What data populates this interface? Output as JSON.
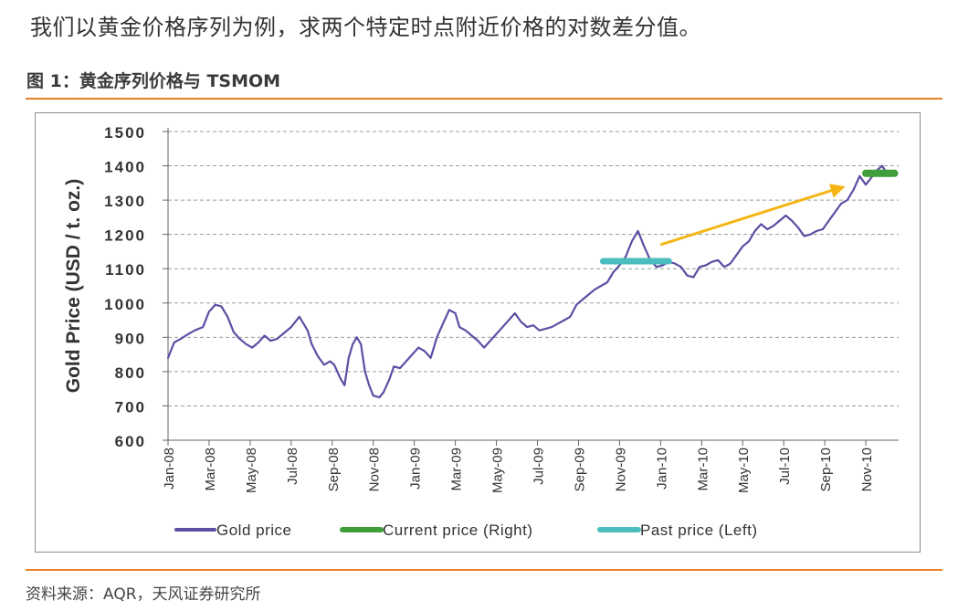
{
  "page": {
    "intro_text": "我们以黄金价格序列为例，求两个特定时点附近价格的对数差分值。",
    "figure_title": "图 1：黄金序列价格与 TSMOM",
    "source": "资料来源：AQR，天风证券研究所"
  },
  "colors": {
    "gold_price": "#5b4fa3",
    "current_price": "#3f9e3a",
    "past_price": "#4bbdbe",
    "arrow": "#f5b515",
    "accent_rule": "#e87f24",
    "grid": "#9a9a9a"
  },
  "chart_data": {
    "type": "line",
    "title": "",
    "ylabel": "Gold Price (USD / t. oz.)",
    "xlabel": "",
    "ylim": [
      600,
      1500
    ],
    "yticks": [
      600,
      700,
      800,
      900,
      1000,
      1100,
      1200,
      1300,
      1400,
      1500
    ],
    "ytick_labels": [
      "600",
      "700",
      "800",
      "900",
      "1000",
      "1100",
      "1200",
      "1300",
      "1400",
      "1500"
    ],
    "grid": true,
    "legend_position": "bottom",
    "x_start": "2008-01",
    "x_end": "2010-12",
    "x_ticks": [
      {
        "label": "Jan-08",
        "month": 0
      },
      {
        "label": "Mar-08",
        "month": 2
      },
      {
        "label": "May-08",
        "month": 4
      },
      {
        "label": "Jul-08",
        "month": 6
      },
      {
        "label": "Sep-08",
        "month": 8
      },
      {
        "label": "Nov-08",
        "month": 10
      },
      {
        "label": "Jan-09",
        "month": 12
      },
      {
        "label": "Mar-09",
        "month": 14
      },
      {
        "label": "May-09",
        "month": 16
      },
      {
        "label": "Jul-09",
        "month": 18
      },
      {
        "label": "Sep-09",
        "month": 20
      },
      {
        "label": "Nov-09",
        "month": 22
      },
      {
        "label": "Jan-10",
        "month": 24
      },
      {
        "label": "Mar-10",
        "month": 26
      },
      {
        "label": "May-10",
        "month": 28
      },
      {
        "label": "Jul-10",
        "month": 30
      },
      {
        "label": "Sep-10",
        "month": 32
      },
      {
        "label": "Nov-10",
        "month": 34
      }
    ],
    "series": [
      {
        "name": "Gold price",
        "month": [
          0,
          0.3,
          0.6,
          1.0,
          1.3,
          1.7,
          2.0,
          2.3,
          2.6,
          2.9,
          3.2,
          3.5,
          3.8,
          4.1,
          4.4,
          4.7,
          5.0,
          5.3,
          5.6,
          6.0,
          6.4,
          6.8,
          7.0,
          7.3,
          7.6,
          7.9,
          8.1,
          8.4,
          8.6,
          8.8,
          9.0,
          9.2,
          9.4,
          9.6,
          9.8,
          10.0,
          10.3,
          10.5,
          10.8,
          11.0,
          11.3,
          11.6,
          11.9,
          12.2,
          12.5,
          12.8,
          13.1,
          13.4,
          13.7,
          14.0,
          14.2,
          14.5,
          14.8,
          15.1,
          15.4,
          15.7,
          16.0,
          16.3,
          16.6,
          16.9,
          17.2,
          17.5,
          17.8,
          18.1,
          18.4,
          18.7,
          19.0,
          19.3,
          19.6,
          19.9,
          20.2,
          20.5,
          20.8,
          21.1,
          21.4,
          21.7,
          22.0,
          22.3,
          22.6,
          22.9,
          23.2,
          23.5,
          23.8,
          24.1,
          24.4,
          24.7,
          25.0,
          25.3,
          25.6,
          25.9,
          26.2,
          26.5,
          26.8,
          27.1,
          27.4,
          27.7,
          28.0,
          28.3,
          28.6,
          28.9,
          29.2,
          29.5,
          29.8,
          30.1,
          30.4,
          30.7,
          31.0,
          31.3,
          31.6,
          31.9,
          32.2,
          32.5,
          32.8,
          33.1,
          33.4,
          33.7,
          34.0,
          34.2,
          34.5,
          34.8,
          35.1,
          35.4
        ],
        "values": [
          840,
          885,
          895,
          910,
          920,
          930,
          975,
          995,
          990,
          960,
          915,
          895,
          880,
          870,
          885,
          905,
          890,
          895,
          910,
          930,
          960,
          920,
          880,
          845,
          820,
          830,
          820,
          780,
          760,
          840,
          880,
          900,
          880,
          800,
          760,
          730,
          725,
          740,
          780,
          815,
          810,
          830,
          850,
          870,
          860,
          840,
          900,
          940,
          980,
          970,
          930,
          920,
          905,
          890,
          870,
          890,
          910,
          930,
          950,
          970,
          945,
          930,
          935,
          920,
          925,
          930,
          940,
          950,
          960,
          995,
          1010,
          1025,
          1040,
          1050,
          1060,
          1090,
          1110,
          1135,
          1180,
          1210,
          1165,
          1125,
          1105,
          1110,
          1120,
          1115,
          1105,
          1080,
          1075,
          1105,
          1110,
          1120,
          1125,
          1105,
          1115,
          1140,
          1165,
          1180,
          1210,
          1230,
          1215,
          1225,
          1240,
          1255,
          1240,
          1220,
          1195,
          1200,
          1210,
          1215,
          1240,
          1265,
          1290,
          1300,
          1330,
          1370,
          1345,
          1360,
          1385,
          1400,
          1370,
          1380
        ]
      },
      {
        "name": "Current price (Right)",
        "month": [
          34.0,
          35.4
        ],
        "values": [
          1378,
          1378
        ]
      },
      {
        "name": "Past price (Left)",
        "month": [
          21.2,
          24.4
        ],
        "values": [
          1122,
          1122
        ]
      }
    ],
    "annotations": [
      {
        "type": "arrow",
        "from_month": 24.0,
        "from_value": 1170,
        "to_month": 33.0,
        "to_value": 1340
      }
    ]
  }
}
